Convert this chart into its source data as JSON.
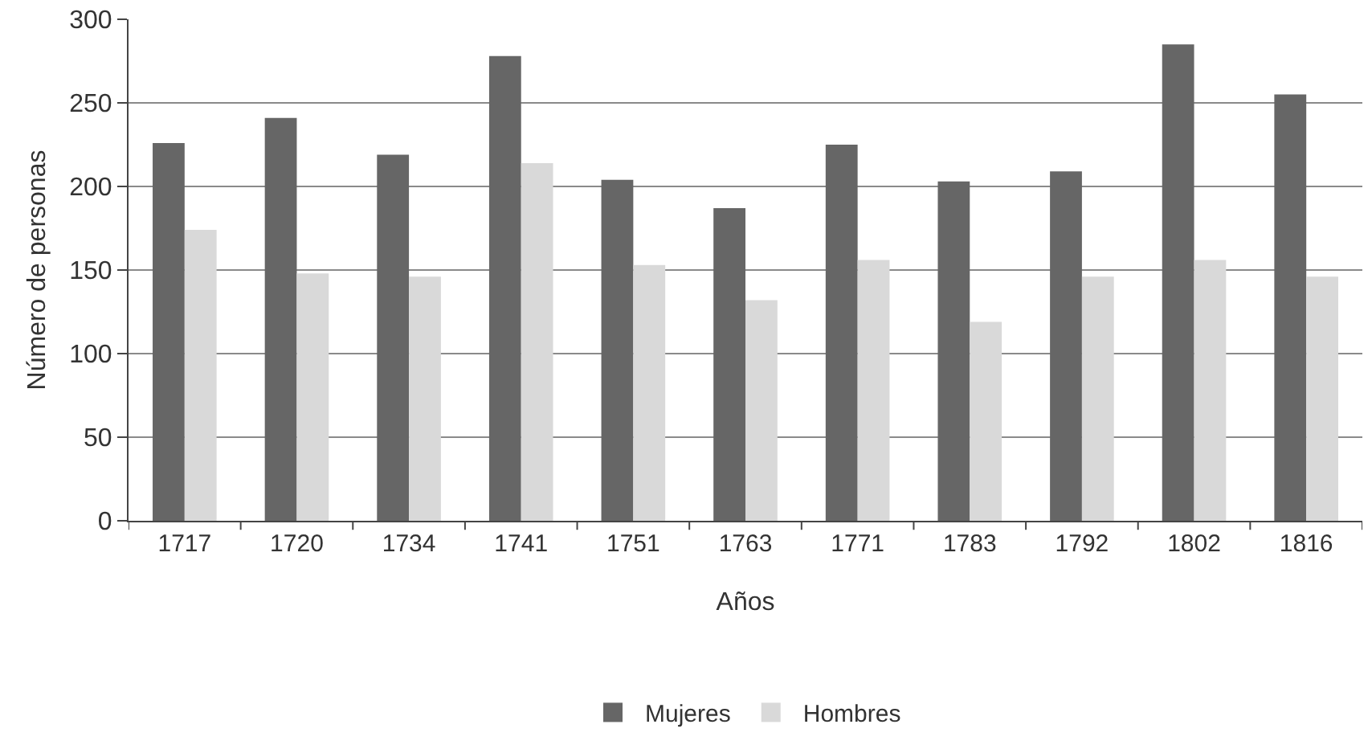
{
  "chart_data": {
    "type": "bar",
    "xlabel": "Años",
    "ylabel": "Número de personas",
    "categories": [
      "1717",
      "1720",
      "1734",
      "1741",
      "1751",
      "1763",
      "1771",
      "1783",
      "1792",
      "1802",
      "1816"
    ],
    "series": [
      {
        "name": "Mujeres",
        "color": "#666666",
        "values": [
          226,
          241,
          219,
          278,
          204,
          187,
          225,
          203,
          209,
          285,
          255
        ]
      },
      {
        "name": "Hombres",
        "color": "#d9d9d9",
        "values": [
          174,
          148,
          146,
          214,
          153,
          132,
          156,
          119,
          146,
          156,
          146
        ]
      }
    ],
    "ylim": [
      0,
      300
    ],
    "yticks": [
      0,
      50,
      100,
      150,
      200,
      250,
      300
    ],
    "grid": "y",
    "legend": "bottom"
  }
}
